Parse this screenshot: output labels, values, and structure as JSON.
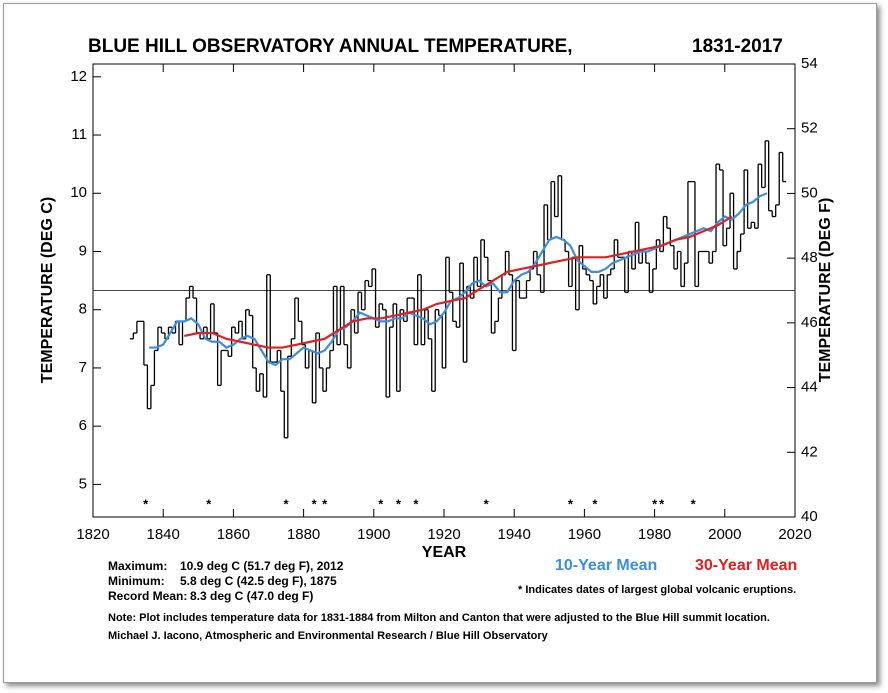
{
  "chart_data": {
    "type": "line",
    "title": "BLUE HILL OBSERVATORY ANNUAL TEMPERATURE,",
    "title_years": "1831-2017",
    "xlabel": "YEAR",
    "ylabel": "TEMPERATURE (DEG C)",
    "y2label": "TEMPERATURE (DEG F)",
    "xlim": [
      1820,
      2020
    ],
    "xticks": [
      1820,
      1840,
      1860,
      1880,
      1900,
      1920,
      1940,
      1960,
      1980,
      2000,
      2020
    ],
    "ylim": [
      4.44,
      12.22
    ],
    "yticks": [
      5,
      6,
      7,
      8,
      9,
      10,
      11,
      12
    ],
    "y2lim": [
      40,
      54
    ],
    "y2ticks": [
      40,
      42,
      44,
      46,
      48,
      50,
      52,
      54
    ],
    "reference_line": 8.33,
    "eruptions": [
      1835,
      1853,
      1875,
      1883,
      1886,
      1902,
      1907,
      1912,
      1932,
      1956,
      1963,
      1980,
      1982,
      1991
    ],
    "eruption_marker": "*",
    "series": [
      {
        "color": "#000000",
        "step": true,
        "x": [
          1831,
          1832,
          1833,
          1834,
          1835,
          1836,
          1837,
          1838,
          1839,
          1840,
          1841,
          1842,
          1843,
          1844,
          1845,
          1846,
          1847,
          1848,
          1849,
          1850,
          1851,
          1852,
          1853,
          1854,
          1855,
          1856,
          1857,
          1858,
          1859,
          1860,
          1861,
          1862,
          1863,
          1864,
          1865,
          1866,
          1867,
          1868,
          1869,
          1870,
          1871,
          1872,
          1873,
          1874,
          1875,
          1876,
          1877,
          1878,
          1879,
          1880,
          1881,
          1882,
          1883,
          1884,
          1885,
          1886,
          1887,
          1888,
          1889,
          1890,
          1891,
          1892,
          1893,
          1894,
          1895,
          1896,
          1897,
          1898,
          1899,
          1900,
          1901,
          1902,
          1903,
          1904,
          1905,
          1906,
          1907,
          1908,
          1909,
          1910,
          1911,
          1912,
          1913,
          1914,
          1915,
          1916,
          1917,
          1918,
          1919,
          1920,
          1921,
          1922,
          1923,
          1924,
          1925,
          1926,
          1927,
          1928,
          1929,
          1930,
          1931,
          1932,
          1933,
          1934,
          1935,
          1936,
          1937,
          1938,
          1939,
          1940,
          1941,
          1942,
          1943,
          1944,
          1945,
          1946,
          1947,
          1948,
          1949,
          1950,
          1951,
          1952,
          1953,
          1954,
          1955,
          1956,
          1957,
          1958,
          1959,
          1960,
          1961,
          1962,
          1963,
          1964,
          1965,
          1966,
          1967,
          1968,
          1969,
          1970,
          1971,
          1972,
          1973,
          1974,
          1975,
          1976,
          1977,
          1978,
          1979,
          1980,
          1981,
          1982,
          1983,
          1984,
          1985,
          1986,
          1987,
          1988,
          1989,
          1990,
          1991,
          1992,
          1993,
          1994,
          1995,
          1996,
          1997,
          1998,
          1999,
          2000,
          2001,
          2002,
          2003,
          2004,
          2005,
          2006,
          2007,
          2008,
          2009,
          2010,
          2011,
          2012,
          2013,
          2014,
          2015,
          2016,
          2017
        ],
        "values": [
          7.5,
          7.6,
          7.8,
          7.8,
          7.05,
          6.3,
          6.7,
          7.3,
          7.7,
          7.6,
          7.5,
          7.7,
          7.6,
          7.8,
          7.4,
          7.8,
          8.2,
          8.4,
          8.2,
          7.6,
          7.5,
          7.7,
          7.5,
          8.1,
          7.6,
          6.7,
          7.3,
          7.3,
          7.2,
          7.7,
          7.6,
          7.8,
          7.5,
          8.0,
          7.9,
          7.0,
          6.6,
          6.9,
          6.5,
          8.6,
          7.1,
          7.1,
          7.3,
          6.6,
          5.8,
          7.2,
          7.5,
          8.2,
          7.8,
          7.4,
          7.0,
          7.3,
          6.4,
          7.6,
          7.0,
          6.6,
          7.0,
          7.3,
          8.4,
          7.4,
          8.4,
          7.4,
          7.0,
          8.0,
          7.6,
          8.3,
          8.0,
          8.5,
          8.4,
          8.7,
          7.7,
          8.1,
          8.0,
          6.5,
          7.7,
          8.1,
          6.6,
          8.0,
          7.8,
          8.2,
          8.2,
          7.4,
          8.6,
          7.4,
          8.0,
          7.5,
          6.6,
          8.0,
          7.9,
          7.0,
          8.9,
          8.3,
          7.8,
          7.7,
          8.8,
          7.1,
          8.4,
          8.2,
          8.9,
          8.4,
          9.2,
          8.9,
          8.5,
          7.6,
          7.8,
          8.2,
          8.6,
          9.0,
          8.6,
          7.3,
          8.5,
          8.2,
          8.2,
          8.5,
          8.7,
          9.0,
          8.6,
          8.3,
          9.8,
          9.2,
          10.2,
          9.6,
          10.3,
          9.2,
          9.0,
          8.4,
          8.9,
          8.0,
          9.1,
          8.7,
          8.6,
          8.5,
          8.1,
          8.4,
          8.6,
          8.2,
          8.6,
          8.7,
          9.2,
          8.9,
          8.9,
          8.3,
          9.0,
          8.7,
          9.5,
          8.8,
          9.0,
          8.8,
          8.3,
          8.7,
          9.2,
          9.0,
          9.6,
          9.4,
          9.1,
          8.7,
          9.0,
          8.4,
          8.8,
          10.2,
          10.2,
          8.4,
          9.0,
          9.0,
          9.0,
          8.8,
          9.0,
          10.5,
          10.4,
          9.1,
          9.4,
          10.0,
          8.7,
          9.0,
          9.3,
          10.4,
          9.4,
          9.5,
          9.4,
          10.5,
          10.1,
          10.9,
          9.7,
          9.6,
          9.8,
          10.7,
          10.2
        ]
      },
      {
        "name": "10-Year Mean",
        "color": "#3a8fe0",
        "x": [
          1836,
          1838,
          1840,
          1842,
          1844,
          1846,
          1848,
          1850,
          1852,
          1854,
          1856,
          1858,
          1860,
          1862,
          1864,
          1866,
          1868,
          1870,
          1872,
          1874,
          1876,
          1878,
          1880,
          1882,
          1884,
          1886,
          1888,
          1890,
          1892,
          1894,
          1896,
          1898,
          1900,
          1902,
          1904,
          1906,
          1908,
          1910,
          1912,
          1914,
          1916,
          1918,
          1920,
          1922,
          1924,
          1926,
          1928,
          1930,
          1932,
          1934,
          1936,
          1938,
          1940,
          1942,
          1944,
          1946,
          1948,
          1950,
          1952,
          1954,
          1956,
          1958,
          1960,
          1962,
          1964,
          1966,
          1968,
          1970,
          1972,
          1974,
          1976,
          1978,
          1980,
          1982,
          1984,
          1986,
          1988,
          1990,
          1992,
          1994,
          1996,
          1998,
          2000,
          2002,
          2004,
          2006,
          2008,
          2010,
          2012
        ],
        "values": [
          7.35,
          7.35,
          7.4,
          7.6,
          7.8,
          7.8,
          7.85,
          7.75,
          7.5,
          7.45,
          7.45,
          7.35,
          7.4,
          7.5,
          7.55,
          7.5,
          7.3,
          7.1,
          7.05,
          7.15,
          7.15,
          7.25,
          7.35,
          7.3,
          7.25,
          7.3,
          7.45,
          7.65,
          7.7,
          7.8,
          7.95,
          7.9,
          7.85,
          7.8,
          7.8,
          7.85,
          7.85,
          7.95,
          7.9,
          7.85,
          7.75,
          7.8,
          7.95,
          8.15,
          8.2,
          8.3,
          8.45,
          8.5,
          8.4,
          8.45,
          8.3,
          8.3,
          8.5,
          8.6,
          8.65,
          8.8,
          9.0,
          9.2,
          9.25,
          9.2,
          9.1,
          8.85,
          8.75,
          8.65,
          8.65,
          8.7,
          8.8,
          8.85,
          8.9,
          8.95,
          9.0,
          9.0,
          9.05,
          9.1,
          9.15,
          9.2,
          9.25,
          9.3,
          9.35,
          9.4,
          9.35,
          9.5,
          9.6,
          9.55,
          9.65,
          9.8,
          9.85,
          9.95,
          10.0
        ]
      },
      {
        "name": "30-Year Mean",
        "color": "#e02020",
        "x": [
          1846,
          1850,
          1854,
          1858,
          1862,
          1866,
          1870,
          1874,
          1878,
          1882,
          1886,
          1890,
          1894,
          1898,
          1902,
          1906,
          1910,
          1914,
          1918,
          1922,
          1926,
          1930,
          1934,
          1938,
          1942,
          1946,
          1950,
          1954,
          1958,
          1962,
          1966,
          1970,
          1974,
          1978,
          1982,
          1986,
          1990,
          1994,
          1998,
          2002
        ],
        "values": [
          7.55,
          7.6,
          7.6,
          7.5,
          7.45,
          7.4,
          7.35,
          7.35,
          7.4,
          7.45,
          7.5,
          7.65,
          7.8,
          7.85,
          7.85,
          7.9,
          7.95,
          8.0,
          8.1,
          8.15,
          8.2,
          8.35,
          8.5,
          8.65,
          8.7,
          8.75,
          8.8,
          8.85,
          8.9,
          8.9,
          8.9,
          8.95,
          9.0,
          9.05,
          9.1,
          9.2,
          9.25,
          9.35,
          9.45,
          9.6
        ]
      }
    ],
    "stats": [
      {
        "label": "Maximum:",
        "text": "10.9 deg C (51.7 deg F), 2012"
      },
      {
        "label": "Minimum:",
        "text": "5.8 deg C (42.5 deg F), 1875"
      },
      {
        "label": "Record Mean:",
        "text": "8.3 deg C (47.0 deg F)"
      }
    ],
    "eruption_note": "*  Indicates dates of largest global volcanic eruptions.",
    "note": "Note: Plot includes temperature data for 1831-1884 from Milton and Canton that were adjusted to the Blue Hill summit location.",
    "credit": "Michael J. Iacono, Atmospheric and Environmental Research / Blue Hill Observatory"
  }
}
